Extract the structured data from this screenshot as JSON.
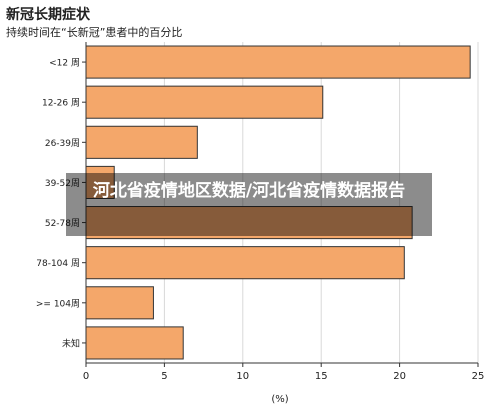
{
  "header": {
    "title": "新冠长期症状",
    "subtitle": "持续时间在“长新冠”患者中的百分比"
  },
  "overlay": {
    "text": "河北省疫情地区数据/河北省疫情数据报告"
  },
  "colors": {
    "bar_fill": "#f4a76a",
    "bar_stroke": "#333333",
    "grid": "#d9d9d9"
  },
  "chart_data": {
    "type": "bar",
    "orientation": "horizontal",
    "categories": [
      "<12 周",
      "12-26 周",
      "26-39周",
      "39-52周",
      "52-78周",
      "78-104 周",
      ">= 104周",
      "未知"
    ],
    "values": [
      24.5,
      15.1,
      7.1,
      1.8,
      20.8,
      20.3,
      4.3,
      6.2
    ],
    "xlabel": "(%)",
    "xlim": [
      0,
      25
    ],
    "xticks": [
      0,
      5,
      10,
      15,
      20,
      25
    ],
    "grid": true
  }
}
